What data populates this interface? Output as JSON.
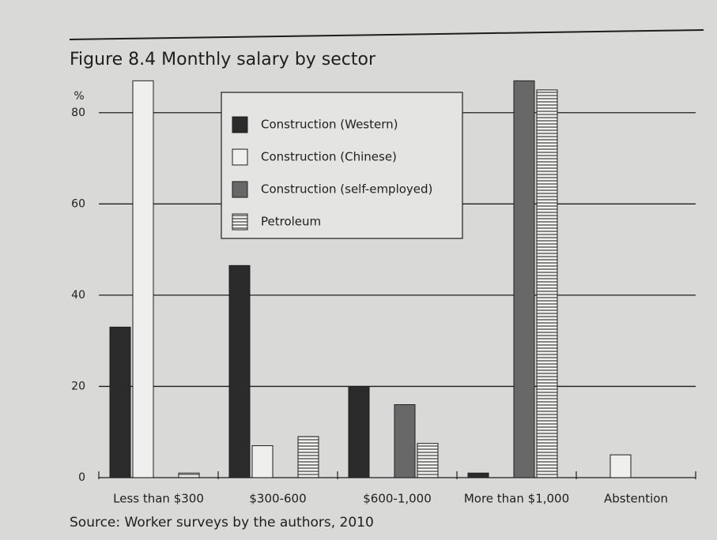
{
  "chart_data": {
    "type": "bar",
    "title": "Figure 8.4 Monthly salary by sector",
    "y_label": "%",
    "source": "Source: Worker surveys by the authors, 2010",
    "categories": [
      "Less than $300",
      "$300-600",
      "$600-1,000",
      "More than $1,000",
      "Abstention"
    ],
    "series": [
      {
        "name": "Construction (Western)",
        "color": "#2b2b2b",
        "values": [
          33,
          46.5,
          20,
          1,
          0
        ]
      },
      {
        "name": "Construction (Chinese)",
        "color": "#efefed",
        "values": [
          87,
          7,
          0,
          0,
          5
        ]
      },
      {
        "name": "Construction (self-employed)",
        "color": "#686868",
        "values": [
          0,
          0,
          16,
          87,
          0
        ]
      },
      {
        "name": "Petroleum",
        "color": "#4a4a4a",
        "hatch": "horizontal",
        "values": [
          1,
          9,
          7.5,
          85,
          0
        ]
      }
    ],
    "ylim": [
      0,
      90
    ],
    "yticks": [
      0,
      20,
      40,
      60,
      80
    ],
    "grid": true
  }
}
